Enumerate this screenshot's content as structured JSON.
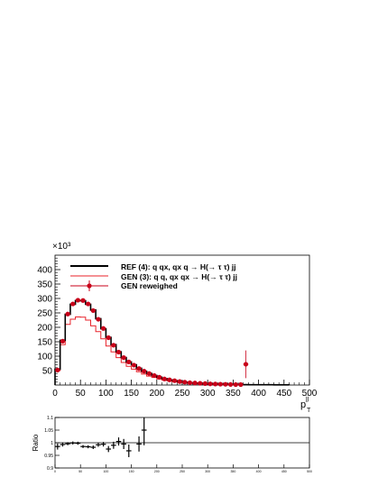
{
  "chart_data": [
    {
      "type": "line",
      "style": "step-histogram",
      "x_bin_width": 10,
      "xlim": [
        0,
        500
      ],
      "ylim": [
        0,
        450
      ],
      "y_multiplier_label": "×10³",
      "xlabel_main": "p",
      "xlabel_sub": "T",
      "xlabel_sup": "jj",
      "x_ticks": [
        "0",
        "50",
        "100",
        "150",
        "200",
        "250",
        "300",
        "350",
        "400",
        "450",
        "500"
      ],
      "y_ticks": [
        "50",
        "100",
        "150",
        "200",
        "250",
        "300",
        "350",
        "400"
      ],
      "legend": {
        "placement": "top",
        "entries": [
          "REF (4): q qx, qx q   → H(→ τ τ) jj",
          "GEN (3): q q, qx qx → H(→ τ τ) jj",
          "GEN reweighed"
        ]
      },
      "x_edges": [
        0,
        10,
        20,
        30,
        40,
        50,
        60,
        70,
        80,
        90,
        100,
        110,
        120,
        130,
        140,
        150,
        160,
        170,
        180,
        190,
        200,
        210,
        220,
        230,
        240,
        250,
        260,
        270,
        280,
        290,
        300,
        310,
        320,
        330,
        340,
        350,
        360,
        370,
        380,
        390,
        400,
        410,
        420,
        430,
        440,
        450,
        460
      ],
      "series": [
        {
          "name": "REF (4): q qx, qx q   → H(→ τ τ) jj",
          "color": "#000000",
          "values": [
            55,
            155,
            245,
            280,
            293,
            292,
            280,
            260,
            230,
            195,
            165,
            140,
            115,
            95,
            80,
            70,
            58,
            48,
            40,
            33,
            27,
            22,
            18,
            15,
            12,
            10,
            8,
            7,
            6,
            5,
            4,
            3.5,
            3,
            2.5,
            2,
            2,
            1.5,
            1.5,
            1,
            1,
            1,
            1,
            1,
            0.5,
            0.5,
            0.5
          ]
        },
        {
          "name": "GEN (3): q q, qx qx → H(→ τ τ) jj",
          "color": "#e8222a",
          "values": [
            50,
            140,
            210,
            228,
            236,
            235,
            225,
            205,
            185,
            160,
            135,
            115,
            95,
            78,
            65,
            55,
            46,
            38,
            31,
            26,
            21,
            17,
            14,
            11,
            9,
            8,
            6,
            5,
            4,
            3.5,
            3,
            2.5,
            2,
            1.8,
            1.5,
            1.2,
            1,
            1,
            1,
            0.8,
            0.8,
            0.6,
            0.5,
            0.4,
            0.3,
            0.3
          ]
        },
        {
          "name": "GEN reweighed",
          "color": "#c8001a",
          "marker": "circle",
          "x": [
            5,
            15,
            25,
            35,
            45,
            55,
            65,
            75,
            85,
            95,
            105,
            115,
            125,
            135,
            145,
            155,
            165,
            175,
            185,
            195,
            205,
            215,
            225,
            235,
            245,
            255,
            265,
            275,
            285,
            295,
            305,
            315,
            325,
            335,
            345,
            355,
            365,
            375
          ],
          "values": [
            52,
            152,
            246,
            281,
            294,
            293,
            281,
            258,
            228,
            196,
            164,
            138,
            114,
            95,
            80,
            69,
            57,
            48,
            40,
            33,
            27,
            21,
            18,
            15,
            12,
            10,
            8,
            7,
            6,
            5,
            4,
            3.5,
            3,
            2.5,
            2,
            1.5,
            1.5,
            72
          ],
          "errors": [
            3,
            4,
            5,
            5,
            5,
            5,
            5,
            5,
            5,
            4,
            4,
            4,
            4,
            4,
            3,
            3,
            3,
            3,
            3,
            3,
            3,
            3,
            3,
            3,
            3,
            3,
            3,
            3,
            3,
            3,
            3,
            3,
            3,
            3,
            3,
            3,
            3,
            48
          ]
        }
      ]
    },
    {
      "type": "scatter",
      "style": "ratio-panel",
      "ylabel": "Ratio",
      "xlim": [
        0,
        500
      ],
      "ylim": [
        0.9,
        1.1
      ],
      "y_ticks": [
        "1.1",
        "1.05",
        "1",
        "0.95",
        "0.9"
      ],
      "x_ticks": [
        "0",
        "50",
        "100",
        "150",
        "200",
        "250",
        "300",
        "350",
        "400",
        "450",
        "500"
      ],
      "reference_line": 1,
      "points": [
        {
          "x": 5,
          "y": 0.985,
          "err": 0.012
        },
        {
          "x": 15,
          "y": 0.993,
          "err": 0.008
        },
        {
          "x": 25,
          "y": 0.996,
          "err": 0.006
        },
        {
          "x": 35,
          "y": 0.999,
          "err": 0.006
        },
        {
          "x": 45,
          "y": 0.998,
          "err": 0.006
        },
        {
          "x": 55,
          "y": 0.985,
          "err": 0.006
        },
        {
          "x": 65,
          "y": 0.984,
          "err": 0.006
        },
        {
          "x": 75,
          "y": 0.982,
          "err": 0.007
        },
        {
          "x": 85,
          "y": 0.992,
          "err": 0.008
        },
        {
          "x": 95,
          "y": 0.994,
          "err": 0.009
        },
        {
          "x": 105,
          "y": 0.975,
          "err": 0.012
        },
        {
          "x": 115,
          "y": 0.99,
          "err": 0.014
        },
        {
          "x": 125,
          "y": 1.005,
          "err": 0.016
        },
        {
          "x": 135,
          "y": 0.995,
          "err": 0.02
        },
        {
          "x": 145,
          "y": 0.968,
          "err": 0.025
        },
        {
          "x": 165,
          "y": 0.995,
          "err": 0.03
        },
        {
          "x": 175,
          "y": 1.05,
          "err": 0.06
        }
      ]
    }
  ]
}
